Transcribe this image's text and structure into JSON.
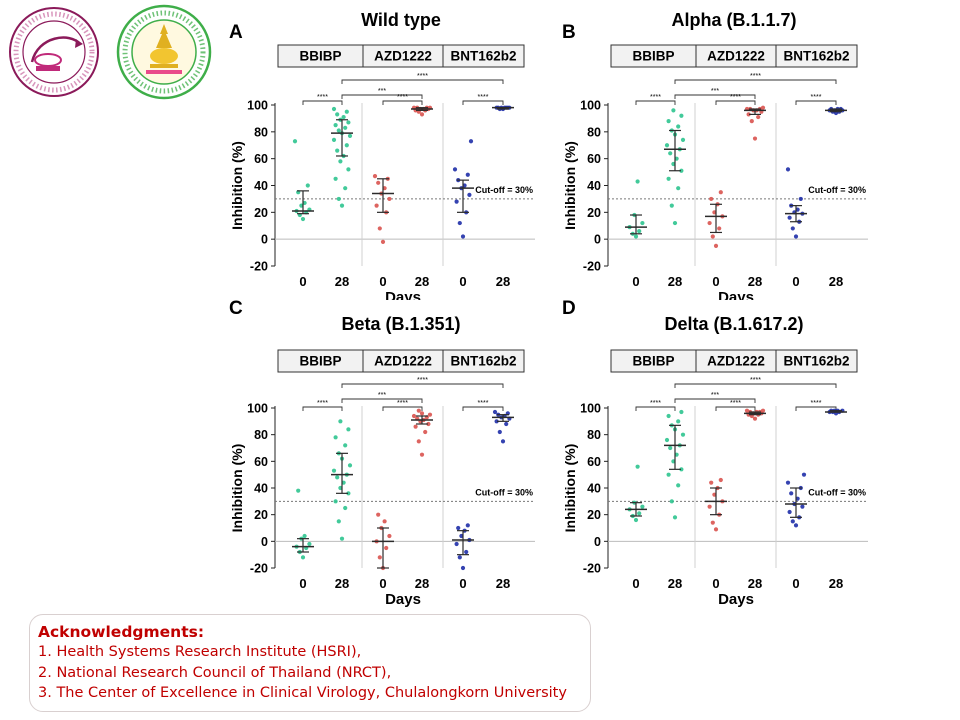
{
  "logos": [
    {
      "icon": "center-of-excellence-clinical-virology-logo",
      "color": "#8b1a5a",
      "ring_text": "Center of Excellence in Clinical Virology"
    },
    {
      "icon": "faculty-of-medicine-chulalongkorn-logo",
      "color": "#3fae49",
      "ring_text": "Faculty of Medicine Chulalongkorn University"
    }
  ],
  "colors": {
    "BBIBP": "#2ec48f",
    "AZD1222": "#d9534f",
    "BNT162b2": "#1f2fa8",
    "median_bar": "#2b2b2b",
    "cutoff_line": "#777777"
  },
  "chart_data": [
    {
      "panel_letter": "A",
      "type": "scatter",
      "title": "Wild type",
      "vaccines": [
        "BBIBP",
        "AZD1222",
        "BNT162b2"
      ],
      "x_ticks": [
        "0",
        "28",
        "0",
        "28",
        "0",
        "28"
      ],
      "xlabel": "Days",
      "ylabel": "Inhibition (%)",
      "ylim": [
        -20,
        100
      ],
      "y_ticks": [
        -20,
        0,
        20,
        40,
        60,
        80,
        100
      ],
      "cutoff": 30,
      "cutoff_label": "Cut-off = 30%",
      "groups": [
        {
          "vaccine": "BBIBP",
          "day": "0",
          "median": 21,
          "q1": 19,
          "q3": 36,
          "points": [
            15,
            18,
            20,
            21,
            22,
            25,
            27,
            35,
            40,
            73
          ]
        },
        {
          "vaccine": "BBIBP",
          "day": "28",
          "median": 79,
          "q1": 62,
          "q3": 89,
          "points": [
            25,
            30,
            38,
            45,
            52,
            58,
            62,
            66,
            70,
            74,
            77,
            79,
            81,
            83,
            85,
            87,
            89,
            91,
            93,
            95,
            97
          ]
        },
        {
          "vaccine": "AZD1222",
          "day": "0",
          "median": 34,
          "q1": 20,
          "q3": 45,
          "points": [
            -2,
            8,
            20,
            25,
            30,
            34,
            38,
            42,
            45,
            47
          ]
        },
        {
          "vaccine": "AZD1222",
          "day": "28",
          "median": 97,
          "q1": 96,
          "q3": 98,
          "points": [
            93,
            95,
            96,
            96,
            97,
            97,
            97,
            98,
            98,
            98,
            98
          ]
        },
        {
          "vaccine": "BNT162b2",
          "day": "0",
          "median": 38,
          "q1": 20,
          "q3": 44,
          "points": [
            2,
            12,
            20,
            28,
            33,
            38,
            40,
            44,
            48,
            52,
            73
          ]
        },
        {
          "vaccine": "BNT162b2",
          "day": "28",
          "median": 98,
          "q1": 97,
          "q3": 98,
          "points": [
            97,
            97,
            98,
            98,
            98,
            98,
            98,
            98,
            98
          ]
        }
      ],
      "comparisons": [
        {
          "from": 0,
          "to": 1,
          "label": "****"
        },
        {
          "from": 1,
          "to": 5,
          "label": "****"
        },
        {
          "from": 1,
          "to": 3,
          "label": "***"
        },
        {
          "from": 2,
          "to": 3,
          "label": "****"
        },
        {
          "from": 4,
          "to": 5,
          "label": "****"
        }
      ]
    },
    {
      "panel_letter": "B",
      "type": "scatter",
      "title": "Alpha (B.1.1.7)",
      "vaccines": [
        "BBIBP",
        "AZD1222",
        "BNT162b2"
      ],
      "x_ticks": [
        "0",
        "28",
        "0",
        "28",
        "0",
        "28"
      ],
      "xlabel": "Days",
      "ylabel": "Inhibition (%)",
      "ylim": [
        -20,
        100
      ],
      "y_ticks": [
        -20,
        0,
        20,
        40,
        60,
        80,
        100
      ],
      "cutoff": 30,
      "cutoff_label": "Cut-off = 30%",
      "groups": [
        {
          "vaccine": "BBIBP",
          "day": "0",
          "median": 9,
          "q1": 4,
          "q3": 18,
          "points": [
            2,
            4,
            6,
            9,
            12,
            18,
            43
          ]
        },
        {
          "vaccine": "BBIBP",
          "day": "28",
          "median": 67,
          "q1": 51,
          "q3": 81,
          "points": [
            12,
            25,
            38,
            45,
            51,
            56,
            60,
            64,
            67,
            70,
            74,
            78,
            81,
            84,
            88,
            92,
            96
          ]
        },
        {
          "vaccine": "AZD1222",
          "day": "0",
          "median": 17,
          "q1": 5,
          "q3": 26,
          "points": [
            -5,
            2,
            8,
            12,
            17,
            20,
            26,
            30,
            35
          ]
        },
        {
          "vaccine": "AZD1222",
          "day": "28",
          "median": 96,
          "q1": 93,
          "q3": 97,
          "points": [
            75,
            88,
            91,
            93,
            95,
            96,
            96,
            97,
            97,
            97,
            98
          ]
        },
        {
          "vaccine": "BNT162b2",
          "day": "0",
          "median": 19,
          "q1": 13,
          "q3": 25,
          "points": [
            2,
            8,
            13,
            16,
            19,
            20,
            22,
            25,
            30,
            52
          ]
        },
        {
          "vaccine": "BNT162b2",
          "day": "28",
          "median": 96,
          "q1": 95,
          "q3": 97,
          "points": [
            94,
            95,
            95,
            96,
            96,
            96,
            97,
            97,
            97
          ]
        }
      ],
      "comparisons": [
        {
          "from": 0,
          "to": 1,
          "label": "****"
        },
        {
          "from": 1,
          "to": 5,
          "label": "****"
        },
        {
          "from": 1,
          "to": 3,
          "label": "***"
        },
        {
          "from": 2,
          "to": 3,
          "label": "****"
        },
        {
          "from": 4,
          "to": 5,
          "label": "****"
        }
      ]
    },
    {
      "panel_letter": "C",
      "type": "scatter",
      "title": "Beta (B.1.351)",
      "vaccines": [
        "BBIBP",
        "AZD1222",
        "BNT162b2"
      ],
      "x_ticks": [
        "0",
        "28",
        "0",
        "28",
        "0",
        "28"
      ],
      "xlabel": "Days",
      "ylabel": "Inhibition (%)",
      "ylim": [
        -20,
        100
      ],
      "y_ticks": [
        -20,
        0,
        20,
        40,
        60,
        80,
        100
      ],
      "cutoff": 30,
      "cutoff_label": "Cut-off = 30%",
      "groups": [
        {
          "vaccine": "BBIBP",
          "day": "0",
          "median": -4,
          "q1": -8,
          "q3": 2,
          "points": [
            -12,
            -8,
            -5,
            -4,
            -2,
            2,
            4,
            38
          ]
        },
        {
          "vaccine": "BBIBP",
          "day": "28",
          "median": 50,
          "q1": 36,
          "q3": 66,
          "points": [
            2,
            15,
            25,
            30,
            36,
            40,
            44,
            48,
            50,
            53,
            57,
            62,
            66,
            72,
            78,
            84,
            90
          ]
        },
        {
          "vaccine": "AZD1222",
          "day": "0",
          "median": 0,
          "q1": -20,
          "q3": 10,
          "points": [
            -20,
            -12,
            -5,
            0,
            4,
            10,
            15,
            20
          ]
        },
        {
          "vaccine": "AZD1222",
          "day": "28",
          "median": 91,
          "q1": 88,
          "q3": 94,
          "points": [
            65,
            75,
            82,
            86,
            88,
            90,
            91,
            92,
            93,
            94,
            95,
            96,
            98
          ]
        },
        {
          "vaccine": "BNT162b2",
          "day": "0",
          "median": 1,
          "q1": -10,
          "q3": 8,
          "points": [
            -20,
            -12,
            -8,
            -2,
            1,
            4,
            8,
            10,
            12
          ]
        },
        {
          "vaccine": "BNT162b2",
          "day": "28",
          "median": 93,
          "q1": 90,
          "q3": 95,
          "points": [
            75,
            82,
            88,
            90,
            92,
            93,
            94,
            95,
            96,
            97
          ]
        }
      ],
      "comparisons": [
        {
          "from": 0,
          "to": 1,
          "label": "****"
        },
        {
          "from": 1,
          "to": 5,
          "label": "****"
        },
        {
          "from": 1,
          "to": 3,
          "label": "***"
        },
        {
          "from": 2,
          "to": 3,
          "label": "****"
        },
        {
          "from": 4,
          "to": 5,
          "label": "****"
        }
      ]
    },
    {
      "panel_letter": "D",
      "type": "scatter",
      "title": "Delta (B.1.617.2)",
      "vaccines": [
        "BBIBP",
        "AZD1222",
        "BNT162b2"
      ],
      "x_ticks": [
        "0",
        "28",
        "0",
        "28",
        "0",
        "28"
      ],
      "xlabel": "Days",
      "ylabel": "Inhibition (%)",
      "ylim": [
        -20,
        100
      ],
      "y_ticks": [
        -20,
        0,
        20,
        40,
        60,
        80,
        100
      ],
      "cutoff": 30,
      "cutoff_label": "Cut-off = 30%",
      "groups": [
        {
          "vaccine": "BBIBP",
          "day": "0",
          "median": 24,
          "q1": 19,
          "q3": 29,
          "points": [
            16,
            19,
            21,
            24,
            26,
            29,
            56
          ]
        },
        {
          "vaccine": "BBIBP",
          "day": "28",
          "median": 72,
          "q1": 54,
          "q3": 87,
          "points": [
            18,
            30,
            42,
            50,
            54,
            60,
            65,
            70,
            72,
            76,
            80,
            84,
            87,
            90,
            94,
            97
          ]
        },
        {
          "vaccine": "AZD1222",
          "day": "0",
          "median": 30,
          "q1": 20,
          "q3": 40,
          "points": [
            9,
            14,
            20,
            26,
            30,
            35,
            40,
            44,
            46
          ]
        },
        {
          "vaccine": "AZD1222",
          "day": "28",
          "median": 96,
          "q1": 95,
          "q3": 97,
          "points": [
            92,
            94,
            95,
            95,
            96,
            96,
            97,
            97,
            97,
            98,
            98
          ]
        },
        {
          "vaccine": "BNT162b2",
          "day": "0",
          "median": 28,
          "q1": 18,
          "q3": 40,
          "points": [
            12,
            15,
            18,
            22,
            26,
            28,
            32,
            36,
            40,
            44,
            50
          ]
        },
        {
          "vaccine": "BNT162b2",
          "day": "28",
          "median": 97,
          "q1": 97,
          "q3": 98,
          "points": [
            96,
            97,
            97,
            97,
            98,
            98,
            98,
            98
          ]
        }
      ],
      "comparisons": [
        {
          "from": 0,
          "to": 1,
          "label": "****"
        },
        {
          "from": 1,
          "to": 5,
          "label": "****"
        },
        {
          "from": 1,
          "to": 3,
          "label": "***"
        },
        {
          "from": 2,
          "to": 3,
          "label": "****"
        },
        {
          "from": 4,
          "to": 5,
          "label": "****"
        }
      ]
    }
  ],
  "acknowledgments": {
    "title": "Acknowledgments:",
    "items": [
      "1. Health Systems Research Institute (HSRI),",
      "2. National Research Council of Thailand (NRCT),",
      "3. The Center of Excellence in Clinical Virology, Chulalongkorn University"
    ]
  }
}
